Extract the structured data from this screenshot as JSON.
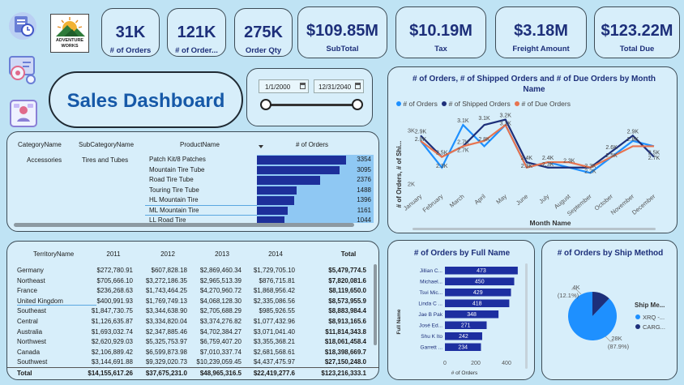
{
  "logo": {
    "line1": "ADVENTURE",
    "line2": "WORKS"
  },
  "kpis": [
    {
      "value": "31K",
      "label": "# of Orders"
    },
    {
      "value": "121K",
      "label": "# of Order..."
    },
    {
      "value": "275K",
      "label": "Order Qty"
    },
    {
      "value": "$109.85M",
      "label": "SubTotal"
    },
    {
      "value": "$10.19M",
      "label": "Tax"
    },
    {
      "value": "$3.18M",
      "label": "Freight Amount"
    },
    {
      "value": "$123.22M",
      "label": "Total Due"
    }
  ],
  "dashboard_title": "Sales Dashboard",
  "date_slicer": {
    "start": "1/1/2000",
    "end": "12/31/2040"
  },
  "product_table": {
    "headers": [
      "CategoryName",
      "SubCategoryName",
      "ProductName",
      "# of Orders"
    ],
    "category": "Accessories",
    "subcategory": "Tires and Tubes",
    "rows": [
      {
        "name": "Patch Kit/8 Patches",
        "value": 3354
      },
      {
        "name": "Mountain Tire Tube",
        "value": 3095
      },
      {
        "name": "Road Tire Tube",
        "value": 2376
      },
      {
        "name": "Touring Tire Tube",
        "value": 1488
      },
      {
        "name": "HL Mountain Tire",
        "value": 1396
      },
      {
        "name": "ML Mountain Tire",
        "value": 1161
      },
      {
        "name": "LL Road Tire",
        "value": 1044
      }
    ]
  },
  "territory_table": {
    "headers": [
      "TerritoryName",
      "2011",
      "2012",
      "2013",
      "2014",
      "Total"
    ],
    "rows": [
      [
        "Germany",
        "$272,780.91",
        "$607,828.18",
        "$2,869,460.34",
        "$1,729,705.10",
        "$5,479,774.5"
      ],
      [
        "Northeast",
        "$705,666.10",
        "$3,272,186.35",
        "$2,965,513.39",
        "$876,715.81",
        "$7,820,081.6"
      ],
      [
        "France",
        "$236,268.63",
        "$1,743,464.25",
        "$4,270,960.72",
        "$1,868,956.42",
        "$8,119,650.0"
      ],
      [
        "United Kingdom",
        "$400,991.93",
        "$1,769,749.13",
        "$4,068,128.30",
        "$2,335,086.56",
        "$8,573,955.9"
      ],
      [
        "Southeast",
        "$1,847,730.75",
        "$3,344,638.90",
        "$2,705,688.29",
        "$985,926.55",
        "$8,883,984.4"
      ],
      [
        "Central",
        "$1,126,635.87",
        "$3,334,820.04",
        "$3,374,276.82",
        "$1,077,432.96",
        "$8,913,165.6"
      ],
      [
        "Australia",
        "$1,693,032.74",
        "$2,347,885.46",
        "$4,702,384.27",
        "$3,071,041.40",
        "$11,814,343.8"
      ],
      [
        "Northwest",
        "$2,620,929.03",
        "$5,325,753.97",
        "$6,759,407.20",
        "$3,355,368.21",
        "$18,061,458.4"
      ],
      [
        "Canada",
        "$2,106,889.42",
        "$6,599,873.98",
        "$7,010,337.74",
        "$2,681,568.61",
        "$18,398,669.7"
      ],
      [
        "Southwest",
        "$3,144,691.88",
        "$9,329,020.73",
        "$10,239,059.45",
        "$4,437,475.97",
        "$27,150,248.0"
      ],
      [
        "Total",
        "$14,155,617.26",
        "$37,675,231.0",
        "$48,965,316.5",
        "$22,419,277.6",
        "$123,216,333.1"
      ]
    ]
  },
  "line_chart": {
    "title": "# of Orders, # of Shipped Orders and # of Due Orders by Month Name",
    "legend": [
      "# of Orders",
      "# of Shipped Orders",
      "# of Due Orders"
    ],
    "xlabel": "Month Name",
    "ylabel": "# of Orders, # of Shi...",
    "yticks": [
      "3K",
      "2K"
    ]
  },
  "bar_chart": {
    "title": "# of Orders by Full Name",
    "xlabel": "# of Orders",
    "ylabel": "Full Name",
    "ticks": [
      "0",
      "200",
      "400"
    ]
  },
  "pie_chart": {
    "title": "# of Orders by Ship Method",
    "legend_title": "Ship Me...",
    "legend": [
      "XRQ -...",
      "CARG..."
    ],
    "small_label": "4K",
    "small_pct": "(12.1%)",
    "big_label": "28K",
    "big_pct": "(87.9%)"
  },
  "chart_data": [
    {
      "type": "line",
      "title": "# of Orders, # of Shipped Orders and # of Due Orders by Month Name",
      "xlabel": "Month Name",
      "ylabel": "# of Orders, # of Shi...",
      "categories": [
        "January",
        "February",
        "March",
        "April",
        "May",
        "June",
        "July",
        "August",
        "September",
        "October",
        "November",
        "December"
      ],
      "ylim": [
        1900,
        3300
      ],
      "series": [
        {
          "name": "# of Orders",
          "color": "#1e90ff",
          "values": [
            2800,
            2300,
            3100,
            2700,
            3100,
            2300,
            2400,
            2300,
            2200,
            2500,
            2800,
            2700
          ]
        },
        {
          "name": "# of Shipped Orders",
          "color": "#1d2f7a",
          "values": [
            2900,
            2500,
            2700,
            3100,
            3200,
            2400,
            2300,
            2300,
            2300,
            2600,
            2900,
            2500
          ]
        },
        {
          "name": "# of Due Orders",
          "color": "#e8744f",
          "values": [
            2800,
            2500,
            2700,
            2800,
            3100,
            2300,
            2400,
            2400,
            2300,
            2500,
            2700,
            2700
          ]
        }
      ],
      "data_labels": [
        {
          "text": "2.9K",
          "i": 0,
          "v": 2900
        },
        {
          "text": "2.8K",
          "i": 0,
          "v": 2750
        },
        {
          "text": "2.5K",
          "i": 1,
          "v": 2500
        },
        {
          "text": "2.3K",
          "i": 1,
          "v": 2250
        },
        {
          "text": "3.1K",
          "i": 2,
          "v": 3100
        },
        {
          "text": "2.7K",
          "i": 2,
          "v": 2700
        },
        {
          "text": "2.7K",
          "i": 2,
          "v": 2550
        },
        {
          "text": "3.1K",
          "i": 3,
          "v": 3150
        },
        {
          "text": "2.8K",
          "i": 3,
          "v": 2750
        },
        {
          "text": "3.2K",
          "i": 4,
          "v": 3200
        },
        {
          "text": "3.1K",
          "i": 4,
          "v": 3050
        },
        {
          "text": "2.4K",
          "i": 5,
          "v": 2400
        },
        {
          "text": "2.3K",
          "i": 5,
          "v": 2250
        },
        {
          "text": "2.4K",
          "i": 6,
          "v": 2400
        },
        {
          "text": "2.3K",
          "i": 6,
          "v": 2280
        },
        {
          "text": "2.3K",
          "i": 7,
          "v": 2350
        },
        {
          "text": "2.3K",
          "i": 8,
          "v": 2250
        },
        {
          "text": "2.2K",
          "i": 8,
          "v": 2150
        },
        {
          "text": "2.6K",
          "i": 9,
          "v": 2600
        },
        {
          "text": "2.5K",
          "i": 9,
          "v": 2450
        },
        {
          "text": "2.9K",
          "i": 10,
          "v": 2900
        },
        {
          "text": "2.8K",
          "i": 10,
          "v": 2750
        },
        {
          "text": "2.5K",
          "i": 11,
          "v": 2500
        },
        {
          "text": "2.7K",
          "i": 11,
          "v": 2400
        }
      ]
    },
    {
      "type": "bar",
      "title": "# of Orders by Full Name",
      "xlabel": "# of Orders",
      "ylabel": "Full Name",
      "categories": [
        "Jillian C...",
        "Michael...",
        "Tsvi Mic...",
        "Linda C ...",
        "Jae B Pak",
        "José Ed...",
        "Shu K Ito",
        "Garrett ..."
      ],
      "values": [
        473,
        450,
        429,
        418,
        348,
        271,
        242,
        234
      ],
      "xlim": [
        0,
        500
      ]
    },
    {
      "type": "pie",
      "title": "# of Orders by Ship Method",
      "categories": [
        "XRQ -...",
        "CARG..."
      ],
      "values": [
        87.9,
        12.1
      ],
      "labels": [
        "28K",
        "4K"
      ],
      "colors": [
        "#1e90ff",
        "#1d2f7a"
      ]
    }
  ]
}
